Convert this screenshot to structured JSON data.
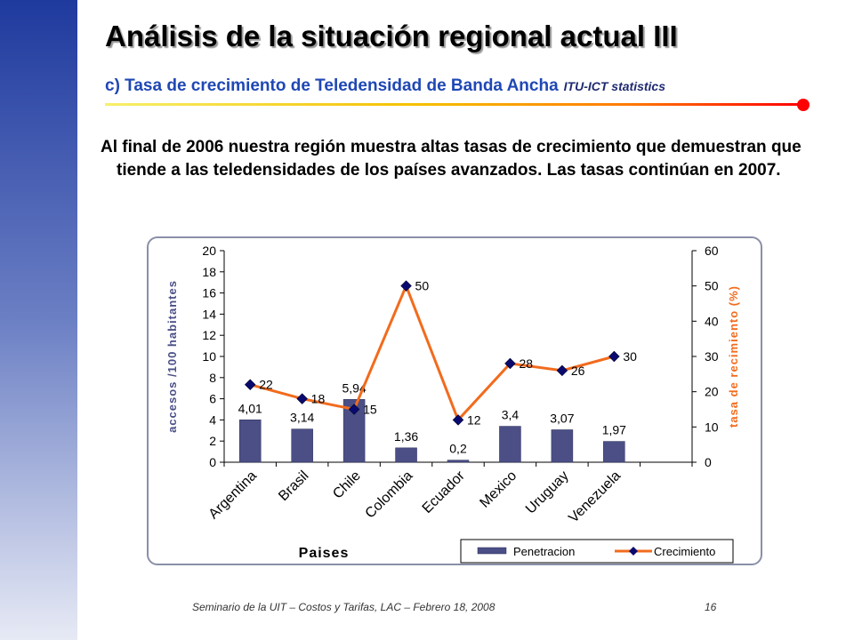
{
  "slide": {
    "title": "Análisis de la situación regional actual III",
    "subtitle": "c) Tasa de crecimiento de Teledensidad de Banda Ancha",
    "source": "ITU-ICT statistics",
    "body": "Al final de 2006 nuestra región muestra altas tasas de crecimiento que demuestran que tiende a las teledensidades de los países avanzados. Las tasas continúan en 2007.",
    "footer": "Seminario de la UIT – Costos y Tarifas, LAC – Febrero 18, 2008",
    "page_number": "16"
  },
  "colors": {
    "bar": "#4b4f86",
    "line": "#f26b1d",
    "marker": "#0a0a6e",
    "left_axis_label": "#4b4f86",
    "right_axis_label": "#f26b1d"
  },
  "chart_data": {
    "type": "bar",
    "categories": [
      "Argentina",
      "Brasil",
      "Chile",
      "Colombia",
      "Ecuador",
      "Mexico",
      "Uruguay",
      "Venezuela"
    ],
    "xlabel": "Paises",
    "ylabel": "accesos /100 habitantes",
    "y2label": "tasa de recimiento (%)",
    "ylim": [
      0,
      20
    ],
    "y2lim": [
      0,
      60
    ],
    "yticks": [
      "0",
      "2",
      "4",
      "6",
      "8",
      "10",
      "12",
      "14",
      "16",
      "18",
      "20"
    ],
    "y2ticks": [
      "0",
      "10",
      "20",
      "30",
      "40",
      "50",
      "60"
    ],
    "series": [
      {
        "name": "Penetracion",
        "type": "bar",
        "axis": "left",
        "values": [
          4.01,
          3.14,
          5.94,
          1.36,
          0.2,
          3.4,
          3.07,
          1.97
        ],
        "labels": [
          "4,01",
          "3,14",
          "5,94",
          "1,36",
          "0,2",
          "3,4",
          "3,07",
          "1,97"
        ]
      },
      {
        "name": "Crecimiento",
        "type": "line",
        "axis": "right",
        "values": [
          22,
          18,
          15,
          50,
          12,
          28,
          26,
          30
        ],
        "labels": [
          "22",
          "18",
          "15",
          "50",
          "12",
          "28",
          "26",
          "30"
        ]
      }
    ],
    "legend": "bottom-right",
    "grid": false
  }
}
